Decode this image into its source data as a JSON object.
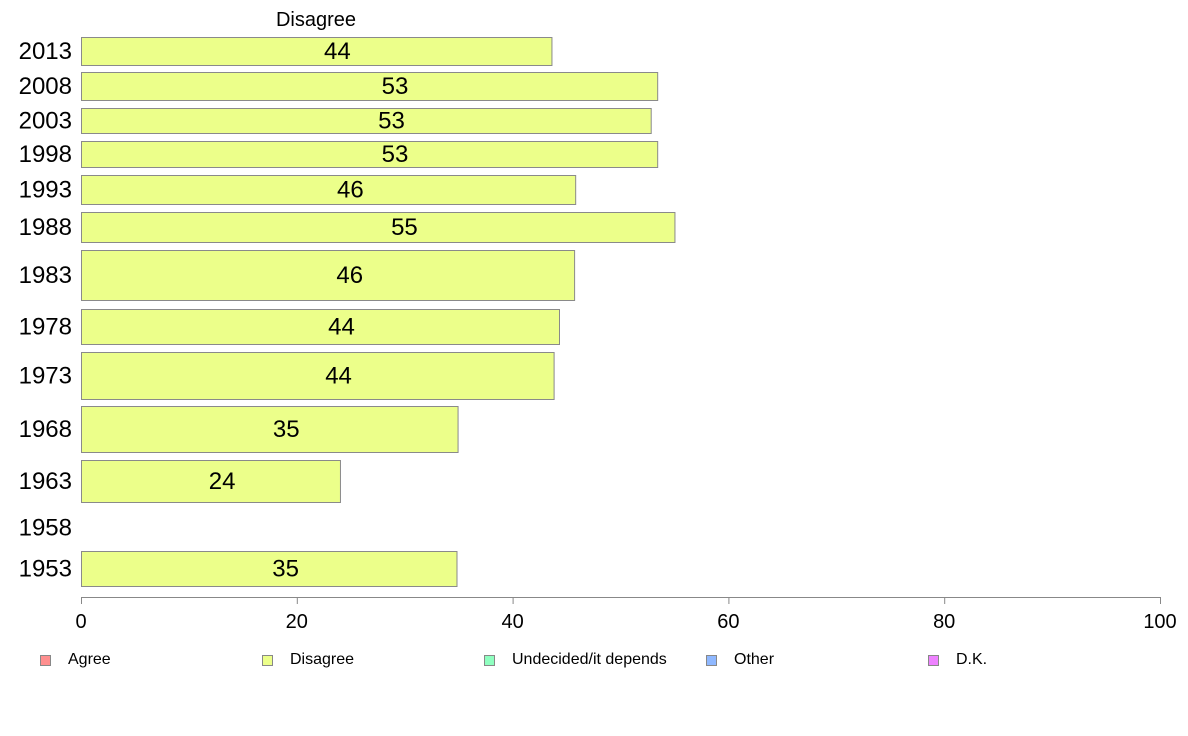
{
  "chart_data": {
    "type": "bar",
    "orientation": "horizontal",
    "title": "Disagree",
    "categories": [
      "2013",
      "2008",
      "2003",
      "1998",
      "1993",
      "1988",
      "1983",
      "1978",
      "1973",
      "1968",
      "1963",
      "1958",
      "1953"
    ],
    "series": [
      {
        "name": "Disagree",
        "color": "#ecff8a",
        "values": [
          43.6,
          53.4,
          52.8,
          53.4,
          45.8,
          55.0,
          45.7,
          44.3,
          43.8,
          34.9,
          24.0,
          null,
          34.8
        ],
        "labels": [
          "44",
          "53",
          "53",
          "53",
          "46",
          "55",
          "46",
          "44",
          "44",
          "35",
          "24",
          "",
          "35"
        ]
      }
    ],
    "xlim": [
      0,
      100
    ],
    "xticks": [
      "0",
      "20",
      "40",
      "60",
      "80",
      "100"
    ],
    "grid": false,
    "legend_position": "bottom"
  },
  "legend": [
    {
      "label": "Agree",
      "color": "#ff8f8f"
    },
    {
      "label": "Disagree",
      "color": "#ecff8a"
    },
    {
      "label": "Undecided/it depends",
      "color": "#8fffc0"
    },
    {
      "label": "Other",
      "color": "#8fb8ff"
    },
    {
      "label": "D.K.",
      "color": "#ee82ff"
    }
  ]
}
